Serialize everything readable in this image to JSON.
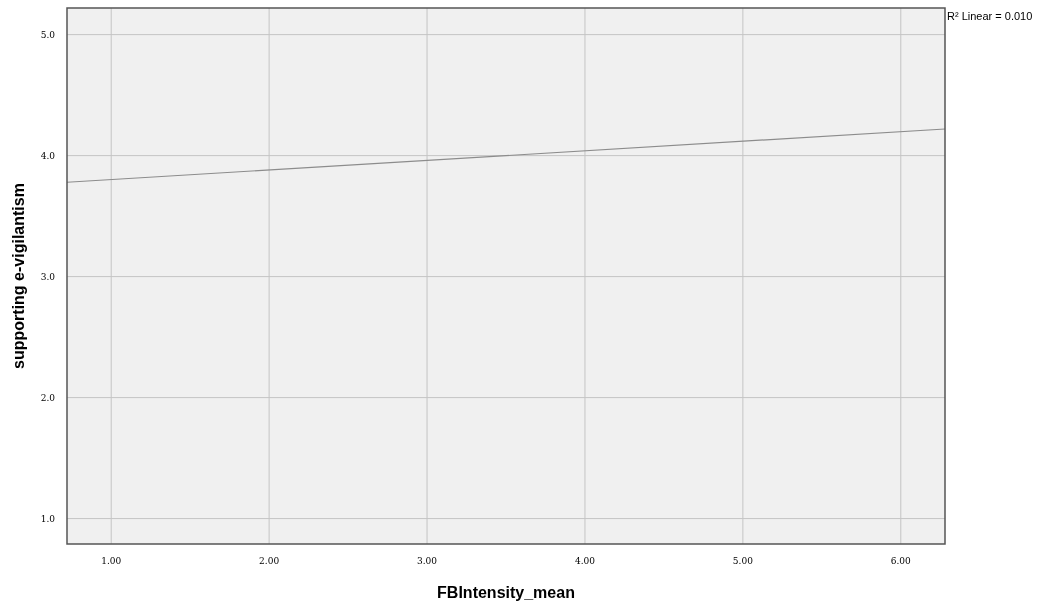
{
  "chart_data": {
    "type": "line",
    "xlabel": "FBIntensity_mean",
    "ylabel": "supporting e-vigilantism",
    "annotations": [
      "R² Linear = 0.010"
    ],
    "xlim": [
      0.72,
      6.28
    ],
    "ylim": [
      0.79,
      5.22
    ],
    "xticks": [
      {
        "value": 1,
        "label": "1.00"
      },
      {
        "value": 2,
        "label": "2.00"
      },
      {
        "value": 3,
        "label": "3.00"
      },
      {
        "value": 4,
        "label": "4.00"
      },
      {
        "value": 5,
        "label": "5.00"
      },
      {
        "value": 6,
        "label": "6.00"
      }
    ],
    "yticks": [
      {
        "value": 1,
        "label": "1.0"
      },
      {
        "value": 2,
        "label": "2.0"
      },
      {
        "value": 3,
        "label": "3.0"
      },
      {
        "value": 4,
        "label": "4.0"
      },
      {
        "value": 5,
        "label": "5.0"
      }
    ],
    "grid": true,
    "marker": "none",
    "line_style": "solid",
    "series": [
      {
        "color": "#8c8c8c",
        "x": [
          0.72,
          6.28
        ],
        "values": [
          3.78,
          4.22
        ]
      }
    ]
  }
}
